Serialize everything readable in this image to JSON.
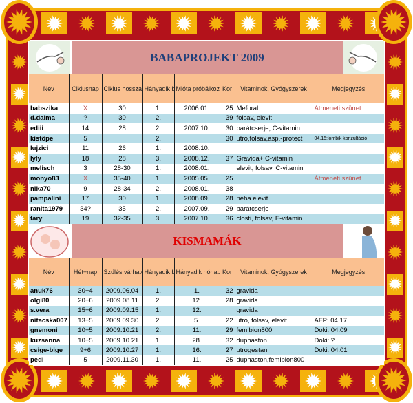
{
  "colors": {
    "border_red": "#b3121b",
    "border_orange": "#f5b20c",
    "title_bar": "#d99694",
    "header": "#fac090",
    "row_blue": "#b7dde8",
    "title1": "#1f3f7a",
    "title2": "#e00000",
    "note_red": "#c0504d"
  },
  "babaprojekt": {
    "title": "BABAPROJEKT 2009",
    "headers": [
      "Név",
      "Ciklusnap",
      "Ciklus hossza",
      "Hányadik baba",
      "Mióta próbálkoznak",
      "Kor",
      "Vitaminok, Gyógyszerek",
      "Megjegyzés"
    ],
    "rows": [
      [
        "babszika",
        "X",
        "30",
        "1.",
        "2006.01.",
        "25",
        "Meforal",
        "Átmeneti szünet"
      ],
      [
        "d.dalma",
        "?",
        "30",
        "2.",
        "",
        "39",
        "folsav, elevit",
        ""
      ],
      [
        "ediii",
        "14",
        "28",
        "2.",
        "2007.10.",
        "30",
        "barátcserje, C-vitamin",
        ""
      ],
      [
        "kistöpe",
        "5",
        "",
        "2.",
        "",
        "30",
        "utro,folsav,asp.-protect",
        "04.15:lombik konzultáció"
      ],
      [
        "lujzici",
        "11",
        "26",
        "1.",
        "2008.10.",
        "",
        "",
        ""
      ],
      [
        "lyly",
        "18",
        "28",
        "3.",
        "2008.12.",
        "37",
        "Gravida+ C-vitamin",
        ""
      ],
      [
        "melisch",
        "3",
        "28-30",
        "1.",
        "2008.01.",
        "",
        "elevit, folsav, C-vitamin",
        ""
      ],
      [
        "monyo83",
        "X",
        "35-40",
        "1.",
        "2005.05.",
        "25",
        "",
        "Átmeneti szünet"
      ],
      [
        "nika70",
        "9",
        "28-34",
        "2.",
        "2008.01.",
        "38",
        "",
        ""
      ],
      [
        "pampalini",
        "17",
        "30",
        "1.",
        "2008.09.",
        "28",
        "néha elevit",
        ""
      ],
      [
        "ranita1979",
        "34?",
        "35",
        "2.",
        "2007.09.",
        "29",
        "barátcserje",
        ""
      ],
      [
        "tary",
        "19",
        "32-35",
        "3.",
        "2007.10.",
        "36",
        "closti, folsav, E-vitamin",
        ""
      ]
    ]
  },
  "kismamak": {
    "title": "KISMAMÁK",
    "headers": [
      "Név",
      "Hét+nap",
      "Szülés várható ideje",
      "Hányadik baba",
      "Hányadik hónapban sikerült",
      "Kor",
      "Vitaminok, Gyógyszerek",
      "Megjegyzés"
    ],
    "rows": [
      [
        "anuk76",
        "30+4",
        "2009.06.04",
        "1.",
        "1.",
        "32",
        "gravida",
        ""
      ],
      [
        "olgi80",
        "20+6",
        "2009.08.11",
        "2.",
        "12.",
        "28",
        "gravida",
        ""
      ],
      [
        "s.vera",
        "15+6",
        "2009.09.15",
        "1.",
        "12.",
        "",
        "gravida",
        ""
      ],
      [
        "nitacska007",
        "13+5",
        "2009.09.30",
        "2.",
        "5.",
        "22",
        "utro, folsav, elevit",
        "AFP: 04.17"
      ],
      [
        "gnemoni",
        "10+5",
        "2009.10.21",
        "2.",
        "11.",
        "29",
        "femibion800",
        "Doki: 04.09"
      ],
      [
        "kuzsanna",
        "10+5",
        "2009.10.21",
        "1.",
        "28.",
        "32",
        "duphaston",
        "Doki: ?"
      ],
      [
        "csige-bige",
        "9+6",
        "2009.10.27",
        "1.",
        "16.",
        "27",
        "utrogestan",
        "Doki: 04.01"
      ],
      [
        "pedi",
        "5",
        "2009.11.30",
        "1.",
        "11.",
        "25",
        "duphaston,femibion800",
        ""
      ]
    ]
  }
}
